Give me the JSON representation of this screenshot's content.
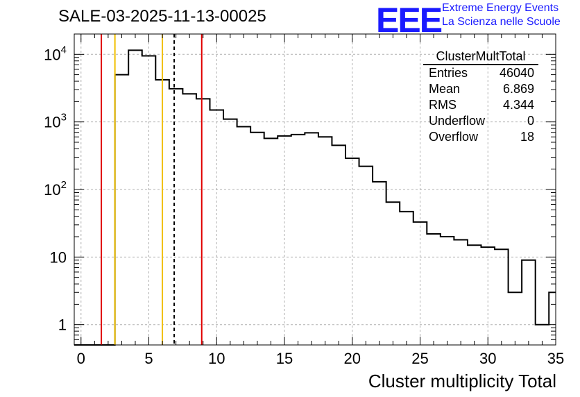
{
  "title": "SALE-03-2025-11-13-00025",
  "logo": {
    "text": "EEE",
    "line1": "Extreme Energy Events",
    "line2": "La Scienza nelle Scuole",
    "color": "#1a1aff"
  },
  "stats": {
    "title": "ClusterMultTotal",
    "rows": [
      {
        "label": "Entries",
        "value": "46040"
      },
      {
        "label": "Mean",
        "value": "6.869"
      },
      {
        "label": "RMS",
        "value": "4.344"
      },
      {
        "label": "Underflow",
        "value": "0"
      },
      {
        "label": "Overflow",
        "value": "18"
      }
    ]
  },
  "chart_data": {
    "type": "bar",
    "title": "SALE-03-2025-11-13-00025",
    "xlabel": "Cluster multiplicity Total",
    "ylabel": "",
    "xlim": [
      -0.5,
      35
    ],
    "ylim": [
      0.5,
      20000
    ],
    "yscale": "log",
    "grid": true,
    "bin_width": 1,
    "bin_lows": [
      -0.5,
      0.5,
      1.5,
      2.5,
      3.5,
      4.5,
      5.5,
      6.5,
      7.5,
      8.5,
      9.5,
      10.5,
      11.5,
      12.5,
      13.5,
      14.5,
      15.5,
      16.5,
      17.5,
      18.5,
      19.5,
      20.5,
      21.5,
      22.5,
      23.5,
      24.5,
      25.5,
      26.5,
      27.5,
      28.5,
      29.5,
      30.5,
      31.5,
      32.5,
      33.5,
      34.5
    ],
    "values": [
      0,
      0,
      0,
      5000,
      11500,
      9500,
      4200,
      3100,
      2600,
      2200,
      1500,
      1100,
      850,
      700,
      570,
      620,
      650,
      690,
      600,
      450,
      290,
      220,
      130,
      65,
      47,
      33,
      22,
      20,
      18,
      15,
      14,
      13,
      3,
      9,
      1,
      3
    ],
    "xticks": [
      0,
      5,
      10,
      15,
      20,
      25,
      30,
      35
    ],
    "yticks": [
      {
        "value": 1,
        "label": "1"
      },
      {
        "value": 10,
        "label": "10"
      },
      {
        "value": 100,
        "label": "10^2"
      },
      {
        "value": 1000,
        "label": "10^3"
      },
      {
        "value": 10000,
        "label": "10^4"
      }
    ],
    "vlines": [
      {
        "x": 1.5,
        "color": "#e00000",
        "style": "solid"
      },
      {
        "x": 2.5,
        "color": "#f0c000",
        "style": "solid"
      },
      {
        "x": 6.0,
        "color": "#f0c000",
        "style": "solid"
      },
      {
        "x": 6.869,
        "color": "#000000",
        "style": "dashed"
      },
      {
        "x": 8.9,
        "color": "#e00000",
        "style": "solid"
      }
    ]
  }
}
